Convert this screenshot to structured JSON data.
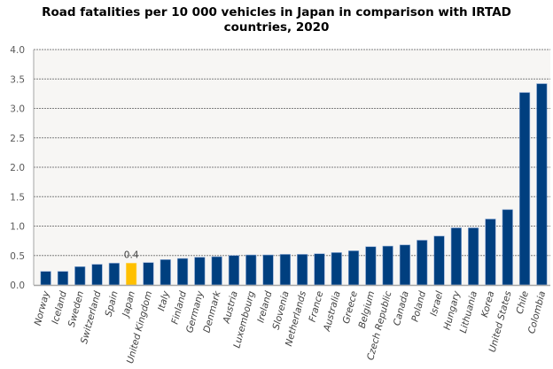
{
  "chart_data": {
    "type": "bar",
    "title": "Road fatalities per 10 000 vehicles in Japan in comparison with IRTAD countries, 2020",
    "title_lines": [
      "Road fatalities per 10 000 vehicles in Japan in comparison with IRTAD",
      "countries, 2020"
    ],
    "xlabel": "",
    "ylabel": "",
    "ylim": [
      0,
      4.0
    ],
    "yticks": [
      "0.0",
      "0.5",
      "1.0",
      "1.5",
      "2.0",
      "2.5",
      "3.0",
      "3.5",
      "4.0"
    ],
    "grid": true,
    "legend": "none",
    "colors": {
      "default": "#003f7f",
      "highlight": "#ffc000",
      "plot_bg": "#f7f6f4",
      "grid": "#7f7f7f",
      "axis": "#a6a6a6"
    },
    "highlight_category": "Japan",
    "annotations": [
      {
        "category": "Japan",
        "text": "0.4"
      }
    ],
    "categories": [
      "Norway",
      "Iceland",
      "Sweden",
      "Switzerland",
      "Spain",
      "Japan",
      "United Kingdom",
      "Italy",
      "Finland",
      "Germany",
      "Denmark",
      "Austria",
      "Luxembourg",
      "Ireland",
      "Slovenia",
      "Netherlands",
      "France",
      "Australia",
      "Greece",
      "Belgium",
      "Czech Republic",
      "Canada",
      "Poland",
      "Israel",
      "Hungary",
      "Lithuania",
      "Korea",
      "United States",
      "Chile",
      "Colombia"
    ],
    "values": [
      0.23,
      0.23,
      0.31,
      0.35,
      0.37,
      0.37,
      0.38,
      0.43,
      0.45,
      0.47,
      0.48,
      0.5,
      0.51,
      0.51,
      0.52,
      0.52,
      0.53,
      0.55,
      0.58,
      0.65,
      0.66,
      0.68,
      0.76,
      0.83,
      0.97,
      0.97,
      1.12,
      1.28,
      3.27,
      3.42
    ]
  }
}
